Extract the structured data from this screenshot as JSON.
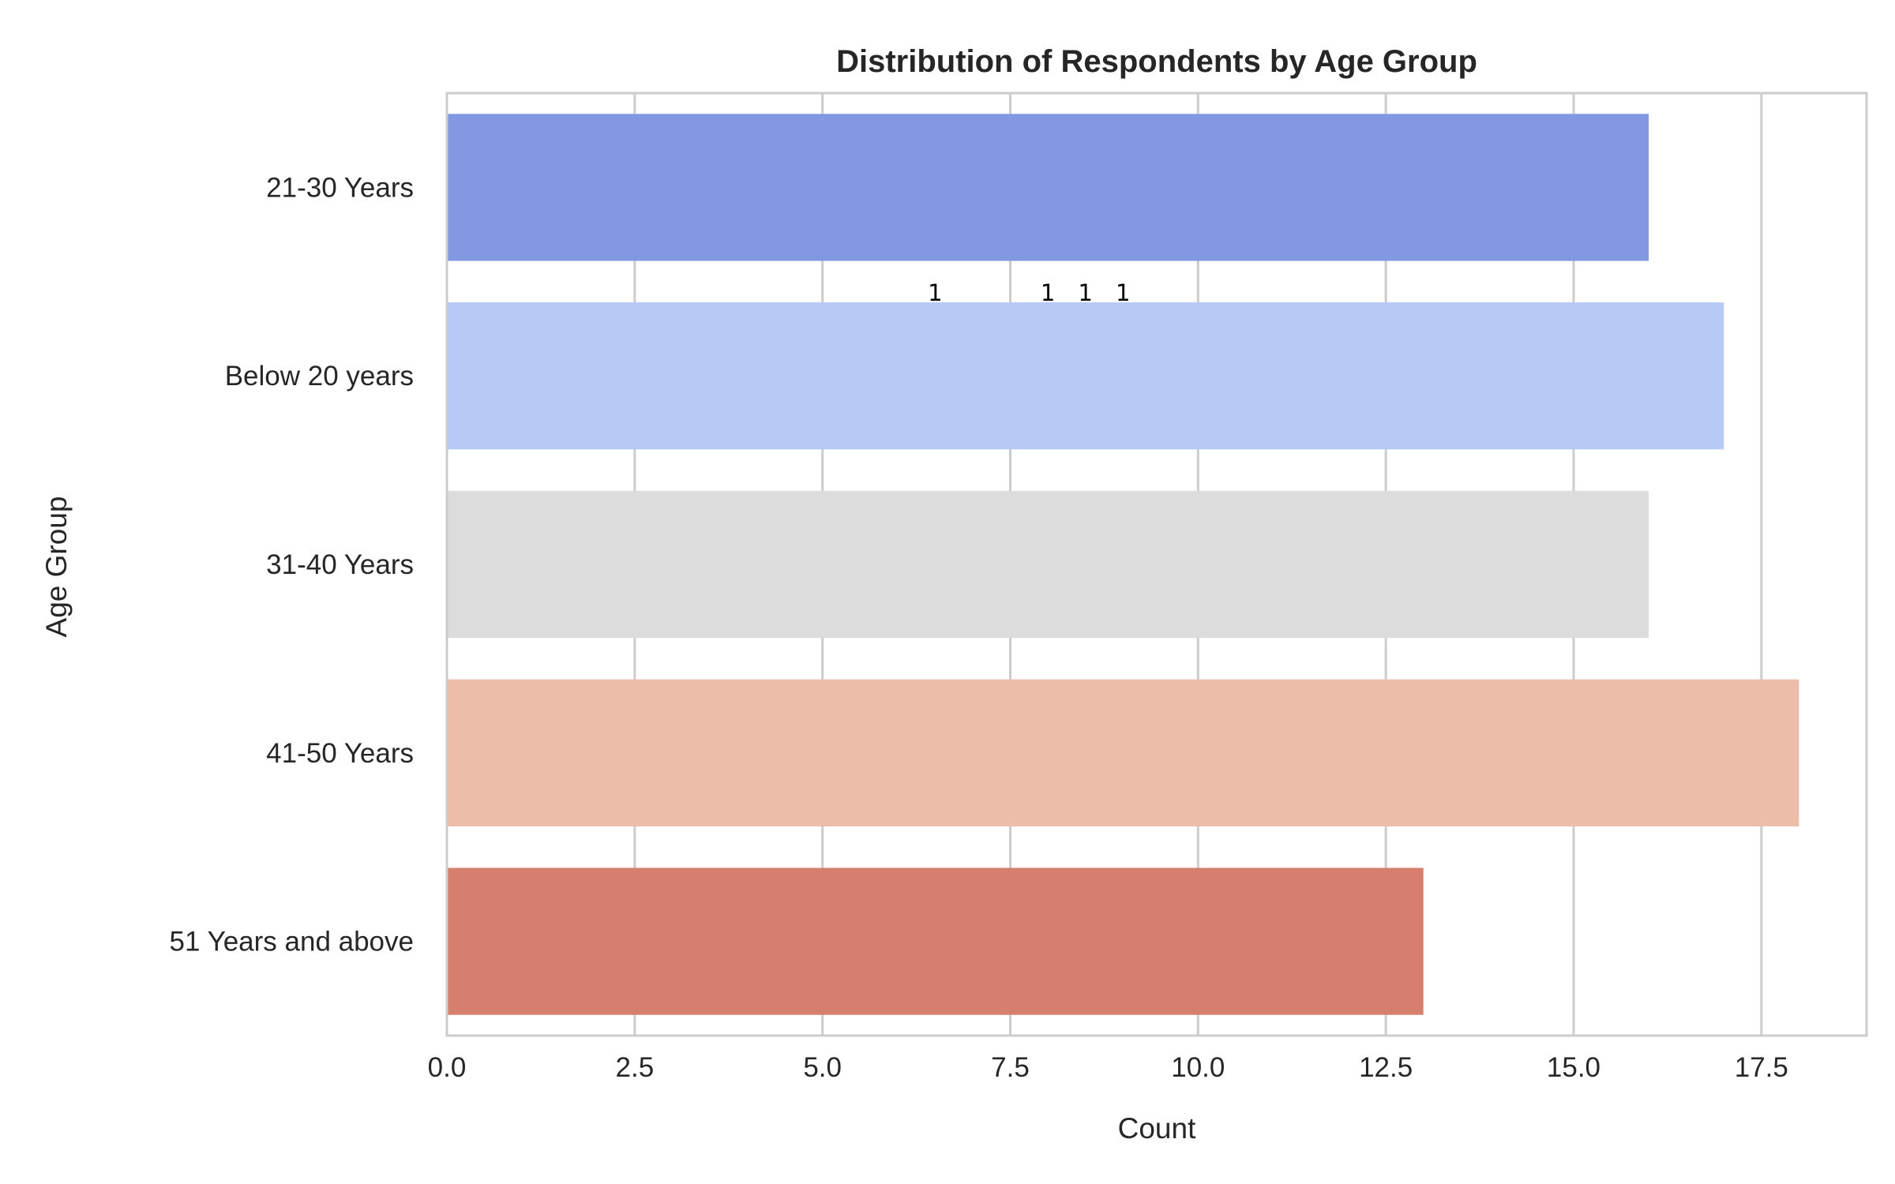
{
  "chart_data": {
    "type": "bar",
    "orientation": "horizontal",
    "title": "Distribution of Respondents by Age Group",
    "xlabel": "Count",
    "ylabel": "Age Group",
    "xlim": [
      0,
      18.9
    ],
    "xticks": [
      0,
      2.5,
      5,
      7.5,
      10,
      12.5,
      15,
      17.5
    ],
    "xtick_labels": [
      "0.0",
      "2.5",
      "5.0",
      "7.5",
      "10.0",
      "12.5",
      "15.0",
      "17.5"
    ],
    "categories": [
      "21-30 Years",
      "Below 20 years",
      "31-40 Years",
      "41-50 Years",
      "51 Years and above"
    ],
    "values": [
      16,
      17,
      16,
      18,
      13
    ],
    "colors": [
      "#8299e2",
      "#b5c9f4",
      "#dcdcdc",
      "#ecbda8",
      "#d67f6c"
    ],
    "grid": true,
    "annotations": [
      {
        "text": "1",
        "x": 6.5,
        "category": "Below 20 years"
      },
      {
        "text": "1",
        "x": 8.0,
        "category": "Below 20 years"
      },
      {
        "text": "1",
        "x": 8.5,
        "category": "Below 20 years"
      },
      {
        "text": "1",
        "x": 9.0,
        "category": "Below 20 years"
      }
    ]
  }
}
